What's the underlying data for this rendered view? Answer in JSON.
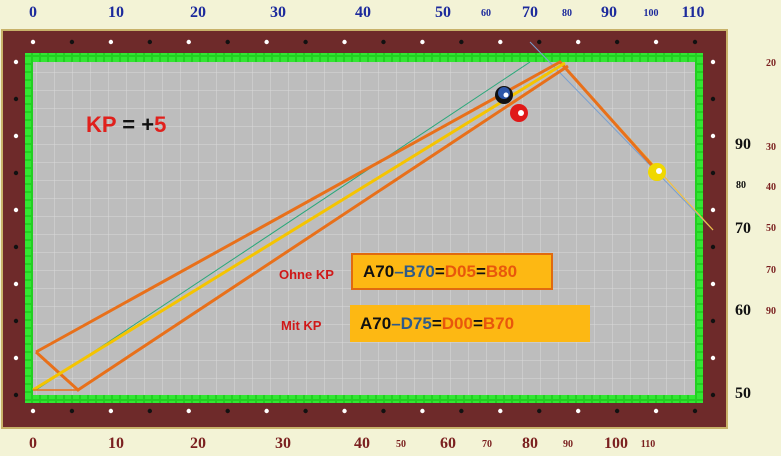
{
  "kp": {
    "prefix": "KP",
    "eq": " = +",
    "value": "5"
  },
  "top_scale": [
    {
      "t": "0",
      "size": "big"
    },
    {
      "t": "10",
      "size": "big"
    },
    {
      "t": "20",
      "size": "big"
    },
    {
      "t": "30",
      "size": "big"
    },
    {
      "t": "40",
      "size": "big"
    },
    {
      "t": "50",
      "size": "big"
    },
    {
      "t": "60",
      "size": "small"
    },
    {
      "t": "70",
      "size": "big"
    },
    {
      "t": "80",
      "size": "small"
    },
    {
      "t": "90",
      "size": "big"
    },
    {
      "t": "100",
      "size": "small"
    },
    {
      "t": "110",
      "size": "big"
    }
  ],
  "bottom_scale": [
    {
      "t": "0",
      "size": "big"
    },
    {
      "t": "10",
      "size": "big"
    },
    {
      "t": "20",
      "size": "big"
    },
    {
      "t": "30",
      "size": "big"
    },
    {
      "t": "40",
      "size": "big"
    },
    {
      "t": "50",
      "size": "small"
    },
    {
      "t": "60",
      "size": "big"
    },
    {
      "t": "70",
      "size": "small"
    },
    {
      "t": "80",
      "size": "big"
    },
    {
      "t": "90",
      "size": "small"
    },
    {
      "t": "100",
      "size": "big"
    },
    {
      "t": "110",
      "size": "small"
    }
  ],
  "right_big": [
    "90",
    "80",
    "70",
    "60",
    "50"
  ],
  "right_small": [
    "20",
    "30",
    "40",
    "50",
    "70",
    "90"
  ],
  "ohne_kp": {
    "label": "Ohne KP",
    "parts": [
      "A70",
      " – ",
      "B70",
      " = ",
      "D05",
      " = ",
      "B80"
    ]
  },
  "mit_kp": {
    "label": "Mit KP",
    "parts": [
      "A70",
      " – ",
      "D75",
      " = ",
      "D00",
      "=",
      "B70"
    ]
  },
  "colors": {
    "rail": "#6e2a2a",
    "cushion": "#22d022",
    "cloth": "#bdbdbd",
    "track": "#e8701a",
    "cue_line": "#f5c400",
    "highlight": "#fdb813",
    "thin_line": "#2aa87a"
  },
  "balls": [
    "black-ball",
    "red-ball",
    "yellow-ball"
  ]
}
